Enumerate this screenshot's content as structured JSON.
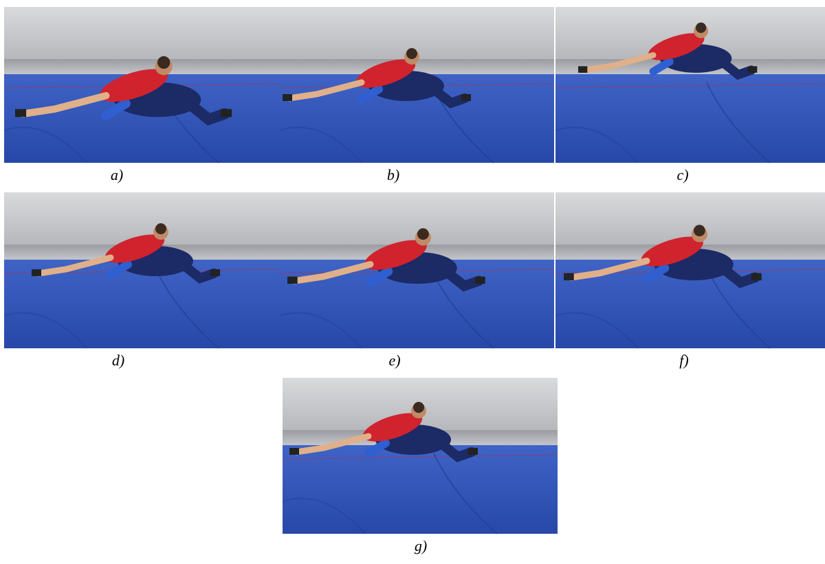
{
  "captions": [
    "a)",
    "b)",
    "c)",
    "d)",
    "e)",
    "f)",
    "g)"
  ]
}
